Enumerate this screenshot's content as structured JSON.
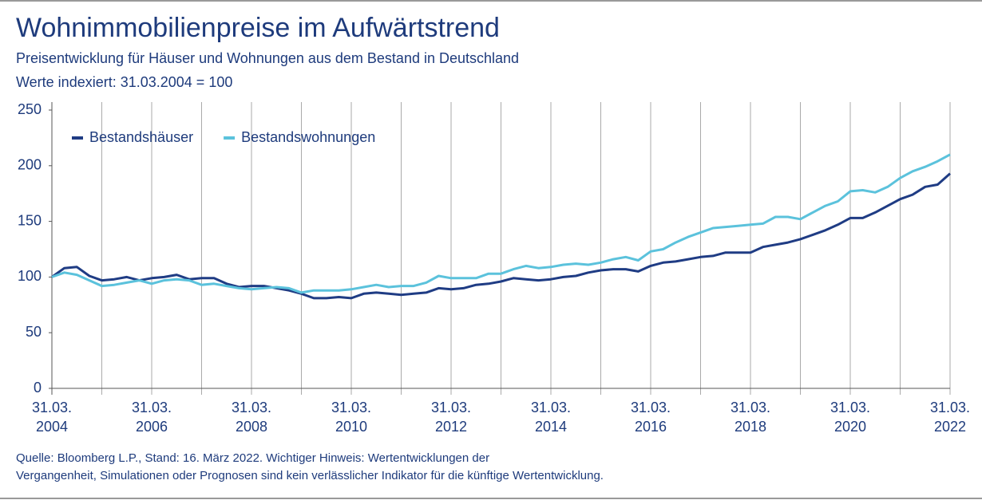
{
  "chart_data": {
    "type": "line",
    "title": "Wohnimmobilienpreise im Aufwärtstrend",
    "subtitle": "Preisentwicklung für Häuser und Wohnungen aus dem Bestand in Deutschland",
    "subtitle2": "Werte indexiert: 31.03.2004 = 100",
    "notes": [
      "Quelle: Bloomberg L.P., Stand: 16. März 2022. Wichtiger Hinweis: Wertentwicklungen der",
      "Vergangenheit, Simulationen oder Prognosen sind kein verlässlicher Indikator für die künftige Wertentwicklung."
    ],
    "x": [
      2004,
      2004.25,
      2004.5,
      2004.75,
      2005,
      2005.25,
      2005.5,
      2005.75,
      2006,
      2006.25,
      2006.5,
      2006.75,
      2007,
      2007.25,
      2007.5,
      2007.75,
      2008,
      2008.25,
      2008.5,
      2008.75,
      2009,
      2009.25,
      2009.5,
      2009.75,
      2010,
      2010.25,
      2010.5,
      2010.75,
      2011,
      2011.25,
      2011.5,
      2011.75,
      2012,
      2012.25,
      2012.5,
      2012.75,
      2013,
      2013.25,
      2013.5,
      2013.75,
      2014,
      2014.25,
      2014.5,
      2014.75,
      2015,
      2015.25,
      2015.5,
      2015.75,
      2016,
      2016.25,
      2016.5,
      2016.75,
      2017,
      2017.25,
      2017.5,
      2017.75,
      2018,
      2018.25,
      2018.5,
      2018.75,
      2019,
      2019.25,
      2019.5,
      2019.75,
      2020,
      2020.25,
      2020.5,
      2020.75,
      2021,
      2021.25,
      2021.5,
      2021.75,
      2022
    ],
    "series": [
      {
        "name": "Bestandshäuser",
        "color": "#1f3c84",
        "values": [
          100,
          108,
          109,
          101,
          97,
          98,
          100,
          97,
          99,
          100,
          102,
          98,
          99,
          99,
          94,
          91,
          92,
          92,
          90,
          88,
          85,
          81,
          81,
          82,
          81,
          85,
          86,
          85,
          84,
          85,
          86,
          90,
          89,
          90,
          93,
          94,
          96,
          99,
          98,
          97,
          98,
          100,
          101,
          104,
          106,
          107,
          107,
          105,
          110,
          113,
          114,
          116,
          118,
          119,
          122,
          122,
          122,
          127,
          129,
          131,
          134,
          138,
          142,
          147,
          153,
          153,
          158,
          164,
          170,
          174,
          181,
          183,
          193
        ]
      },
      {
        "name": "Bestandswohnungen",
        "color": "#5bc2dc",
        "values": [
          100,
          104,
          102,
          97,
          92,
          93,
          95,
          97,
          94,
          97,
          98,
          97,
          93,
          94,
          92,
          90,
          89,
          90,
          91,
          90,
          86,
          88,
          88,
          88,
          89,
          91,
          93,
          91,
          92,
          92,
          95,
          101,
          99,
          99,
          99,
          103,
          103,
          107,
          110,
          108,
          109,
          111,
          112,
          111,
          113,
          116,
          118,
          115,
          123,
          125,
          131,
          136,
          140,
          144,
          145,
          146,
          147,
          148,
          154,
          154,
          152,
          158,
          164,
          168,
          177,
          178,
          176,
          181,
          189,
          195,
          199,
          204,
          210
        ]
      }
    ],
    "xlim": [
      2004,
      2022
    ],
    "xticks": [
      {
        "value": 2004,
        "label": "31.03.\n2004"
      },
      {
        "value": 2006,
        "label": "31.03.\n2006"
      },
      {
        "value": 2008,
        "label": "31.03.\n2008"
      },
      {
        "value": 2010,
        "label": "31.03.\n2010"
      },
      {
        "value": 2012,
        "label": "31.03.\n2012"
      },
      {
        "value": 2014,
        "label": "31.03.\n2014"
      },
      {
        "value": 2016,
        "label": "31.03.\n2016"
      },
      {
        "value": 2018,
        "label": "31.03.\n2018"
      },
      {
        "value": 2020,
        "label": "31.03.\n2020"
      },
      {
        "value": 2022,
        "label": "31.03.\n2022"
      }
    ],
    "xgrid_minor": [
      2005,
      2007,
      2009,
      2011,
      2013,
      2015,
      2017,
      2019,
      2021
    ],
    "ylim": [
      0,
      250
    ],
    "yticks": [
      0,
      50,
      100,
      150,
      200,
      250
    ],
    "grid": "x",
    "legend": "top-left"
  }
}
